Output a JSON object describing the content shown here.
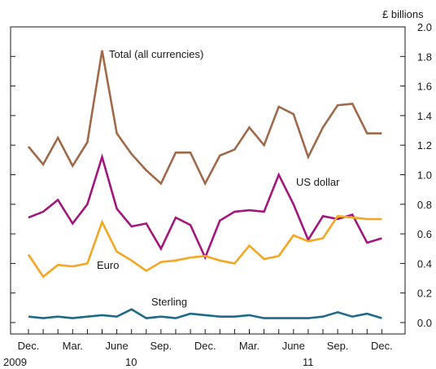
{
  "chart_data": {
    "type": "line",
    "unit_label": "£ billions",
    "ylim": [
      0.0,
      2.0
    ],
    "y_ticks": [
      "0.0",
      "0.2",
      "0.4",
      "0.6",
      "0.8",
      "1.0",
      "1.2",
      "1.4",
      "1.6",
      "1.8",
      "2.0"
    ],
    "x_ticks": [
      "Dec.",
      "Mar.",
      "June",
      "Sep.",
      "Dec.",
      "Mar.",
      "June",
      "Sep.",
      "Dec."
    ],
    "year_labels": [
      "2009",
      "10",
      "11"
    ],
    "x": [
      "2009-12",
      "2010-01",
      "2010-02",
      "2010-03",
      "2010-04",
      "2010-05",
      "2010-06",
      "2010-07",
      "2010-08",
      "2010-09",
      "2010-10",
      "2010-11",
      "2010-12",
      "2011-01",
      "2011-02",
      "2011-03",
      "2011-04",
      "2011-05",
      "2011-06",
      "2011-07",
      "2011-08",
      "2011-09",
      "2011-10",
      "2011-11",
      "2011-12"
    ],
    "series": [
      {
        "name": "Total (all currencies)",
        "color": "#a0694a",
        "values": [
          1.19,
          1.07,
          1.25,
          1.06,
          1.22,
          1.84,
          1.28,
          1.14,
          1.03,
          0.94,
          1.15,
          1.15,
          0.94,
          1.13,
          1.17,
          1.32,
          1.2,
          1.46,
          1.41,
          1.12,
          1.32,
          1.47,
          1.48,
          1.28,
          1.28
        ]
      },
      {
        "name": "US dollar",
        "color": "#a3177c",
        "values": [
          0.71,
          0.75,
          0.83,
          0.67,
          0.8,
          1.12,
          0.77,
          0.65,
          0.67,
          0.5,
          0.71,
          0.66,
          0.44,
          0.69,
          0.75,
          0.76,
          0.75,
          1.0,
          0.8,
          0.56,
          0.72,
          0.7,
          0.73,
          0.54,
          0.57
        ]
      },
      {
        "name": "Euro",
        "color": "#f5a623",
        "values": [
          0.46,
          0.31,
          0.39,
          0.38,
          0.4,
          0.68,
          0.48,
          0.42,
          0.35,
          0.41,
          0.42,
          0.44,
          0.45,
          0.42,
          0.4,
          0.52,
          0.43,
          0.45,
          0.59,
          0.55,
          0.57,
          0.72,
          0.71,
          0.7,
          0.7
        ]
      },
      {
        "name": "Sterling",
        "color": "#1f6a8a",
        "values": [
          0.04,
          0.03,
          0.04,
          0.03,
          0.04,
          0.05,
          0.04,
          0.09,
          0.03,
          0.04,
          0.03,
          0.06,
          0.05,
          0.04,
          0.04,
          0.05,
          0.03,
          0.03,
          0.03,
          0.03,
          0.04,
          0.07,
          0.04,
          0.06,
          0.03
        ]
      }
    ],
    "grid": false,
    "legend": "none"
  }
}
